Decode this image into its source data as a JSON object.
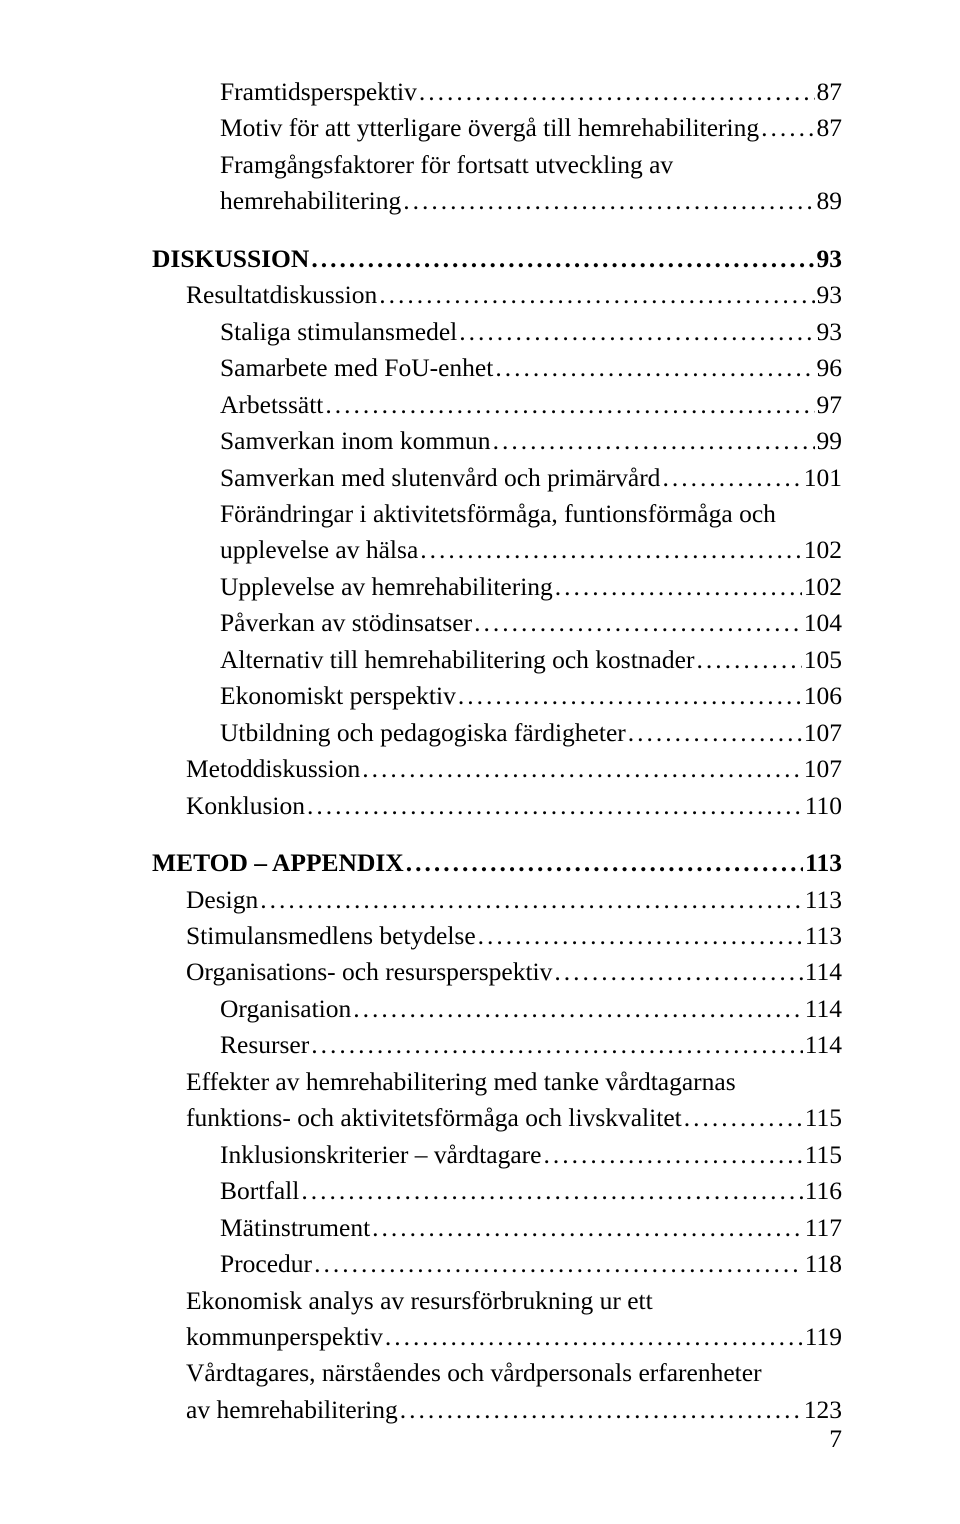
{
  "font": {
    "body_size_pt": 19,
    "family": "Palatino Linotype, Book Antiqua, Palatino, serif",
    "color": "#000000"
  },
  "page_bg": "#ffffff",
  "page_number": "7",
  "entries": [
    {
      "text": "Framtidsperspektiv",
      "page": "87",
      "indent": 2,
      "bold": false
    },
    {
      "text": "Motiv för att ytterligare övergå till hemrehabilitering",
      "page": "87",
      "indent": 2,
      "bold": false
    },
    {
      "text": "Framgångsfaktorer för fortsatt utveckling av",
      "cont": "hemrehabilitering",
      "page": "89",
      "indent": 2,
      "bold": false
    },
    {
      "text": "DISKUSSION",
      "page": "93",
      "indent": 0,
      "bold": true,
      "gap": true
    },
    {
      "text": "Resultatdiskussion",
      "page": "93",
      "indent": 1,
      "bold": false
    },
    {
      "text": "Staliga stimulansmedel",
      "page": "93",
      "indent": 2,
      "bold": false
    },
    {
      "text": "Samarbete med FoU-enhet",
      "page": "96",
      "indent": 2,
      "bold": false
    },
    {
      "text": "Arbetssätt",
      "page": "97",
      "indent": 2,
      "bold": false
    },
    {
      "text": "Samverkan inom kommun",
      "page": "99",
      "indent": 2,
      "bold": false
    },
    {
      "text": "Samverkan med slutenvård och primärvård",
      "page": "101",
      "indent": 2,
      "bold": false
    },
    {
      "text": "Förändringar i aktivitetsförmåga, funtionsförmåga och",
      "cont": "upplevelse av hälsa",
      "page": "102",
      "indent": 2,
      "bold": false
    },
    {
      "text": "Upplevelse av hemrehabilitering",
      "page": "102",
      "indent": 2,
      "bold": false
    },
    {
      "text": "Påverkan av stödinsatser",
      "page": "104",
      "indent": 2,
      "bold": false
    },
    {
      "text": "Alternativ till hemrehabilitering och kostnader",
      "page": "105",
      "indent": 2,
      "bold": false
    },
    {
      "text": "Ekonomiskt perspektiv",
      "page": "106",
      "indent": 2,
      "bold": false
    },
    {
      "text": "Utbildning och pedagogiska färdigheter",
      "page": "107",
      "indent": 2,
      "bold": false
    },
    {
      "text": "Metoddiskussion",
      "page": "107",
      "indent": 1,
      "bold": false
    },
    {
      "text": "Konklusion",
      "page": "110",
      "indent": 1,
      "bold": false
    },
    {
      "text": "METOD – APPENDIX",
      "page": "113",
      "indent": 0,
      "bold": true,
      "gap": true
    },
    {
      "text": "Design",
      "page": "113",
      "indent": 1,
      "bold": false
    },
    {
      "text": "Stimulansmedlens betydelse",
      "page": "113",
      "indent": 1,
      "bold": false
    },
    {
      "text": "Organisations- och resursperspektiv",
      "page": "114",
      "indent": 1,
      "bold": false
    },
    {
      "text": "Organisation",
      "page": "114",
      "indent": 2,
      "bold": false
    },
    {
      "text": "Resurser",
      "page": "114",
      "indent": 2,
      "bold": false
    },
    {
      "text": "Effekter av hemrehabilitering med tanke vårdtagarnas",
      "cont": "funktions- och aktivitetsförmåga och livskvalitet",
      "page": "115",
      "indent": 1,
      "bold": false
    },
    {
      "text": "Inklusionskriterier – vårdtagare",
      "page": "115",
      "indent": 2,
      "bold": false
    },
    {
      "text": "Bortfall",
      "page": "116",
      "indent": 2,
      "bold": false
    },
    {
      "text": "Mätinstrument",
      "page": "117",
      "indent": 2,
      "bold": false
    },
    {
      "text": "Procedur",
      "page": "118",
      "indent": 2,
      "bold": false
    },
    {
      "text": "Ekonomisk analys av resursförbrukning ur ett",
      "cont": "kommunperspektiv",
      "page": "119",
      "indent": 1,
      "bold": false
    },
    {
      "text": "Vårdtagares, närståendes och vårdpersonals erfarenheter",
      "cont": "av hemrehabilitering",
      "page": "123",
      "indent": 1,
      "bold": false
    }
  ]
}
